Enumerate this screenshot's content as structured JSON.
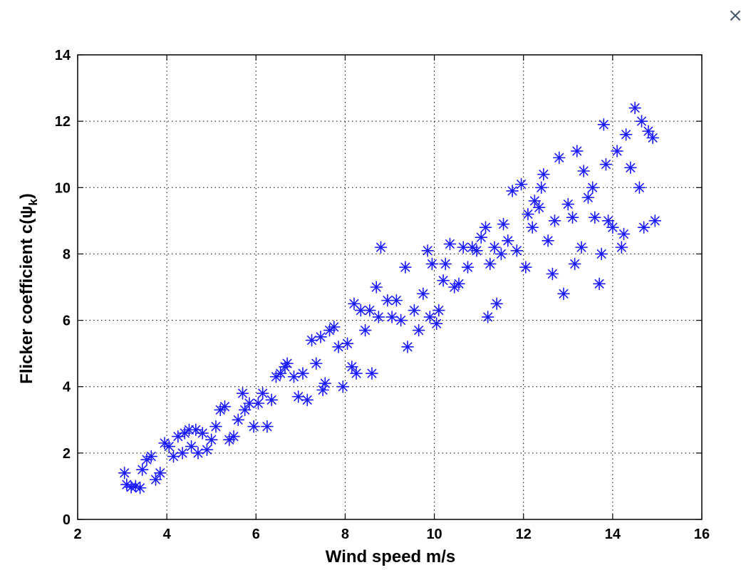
{
  "close_button": {
    "label": "×"
  },
  "chart_data": {
    "type": "scatter",
    "title": "",
    "xlabel": "Wind speed m/s",
    "ylabel": "Flicker coefficient c(ψ",
    "ylabel_subscript": "k",
    "ylabel_suffix": ")",
    "xlim": [
      2,
      16
    ],
    "ylim": [
      0,
      14
    ],
    "xticks": [
      2,
      4,
      6,
      8,
      10,
      12,
      14,
      16
    ],
    "yticks": [
      0,
      2,
      4,
      6,
      8,
      10,
      12,
      14
    ],
    "grid": true,
    "marker": "*",
    "marker_color": "#1a1aff",
    "series": [
      {
        "points": [
          [
            3.05,
            1.4
          ],
          [
            3.1,
            1.05
          ],
          [
            3.2,
            0.97
          ],
          [
            3.3,
            1.0
          ],
          [
            3.4,
            0.95
          ],
          [
            3.45,
            1.5
          ],
          [
            3.55,
            1.8
          ],
          [
            3.65,
            1.9
          ],
          [
            3.75,
            1.2
          ],
          [
            3.85,
            1.4
          ],
          [
            3.95,
            2.3
          ],
          [
            4.05,
            2.2
          ],
          [
            4.15,
            1.9
          ],
          [
            4.25,
            2.5
          ],
          [
            4.35,
            2.0
          ],
          [
            4.4,
            2.6
          ],
          [
            4.5,
            2.7
          ],
          [
            4.55,
            2.2
          ],
          [
            4.65,
            2.7
          ],
          [
            4.7,
            2.0
          ],
          [
            4.8,
            2.6
          ],
          [
            4.9,
            2.1
          ],
          [
            5.0,
            2.4
          ],
          [
            5.1,
            2.8
          ],
          [
            5.2,
            3.3
          ],
          [
            5.3,
            3.4
          ],
          [
            5.4,
            2.4
          ],
          [
            5.5,
            2.5
          ],
          [
            5.6,
            3.0
          ],
          [
            5.7,
            3.8
          ],
          [
            5.75,
            3.3
          ],
          [
            5.85,
            3.5
          ],
          [
            5.95,
            2.8
          ],
          [
            6.05,
            3.5
          ],
          [
            6.15,
            3.8
          ],
          [
            6.25,
            2.8
          ],
          [
            6.35,
            3.6
          ],
          [
            6.45,
            4.3
          ],
          [
            6.55,
            4.4
          ],
          [
            6.65,
            4.6
          ],
          [
            6.7,
            4.7
          ],
          [
            6.85,
            4.3
          ],
          [
            6.95,
            3.7
          ],
          [
            7.05,
            4.4
          ],
          [
            7.15,
            3.6
          ],
          [
            7.25,
            5.4
          ],
          [
            7.35,
            4.7
          ],
          [
            7.45,
            5.5
          ],
          [
            7.5,
            3.9
          ],
          [
            7.55,
            4.1
          ],
          [
            7.65,
            5.7
          ],
          [
            7.75,
            5.8
          ],
          [
            7.85,
            5.2
          ],
          [
            7.95,
            4.0
          ],
          [
            8.05,
            5.3
          ],
          [
            8.15,
            4.6
          ],
          [
            8.2,
            6.5
          ],
          [
            8.25,
            4.4
          ],
          [
            8.35,
            6.3
          ],
          [
            8.45,
            5.7
          ],
          [
            8.55,
            6.3
          ],
          [
            8.6,
            4.4
          ],
          [
            8.7,
            7.0
          ],
          [
            8.75,
            6.1
          ],
          [
            8.8,
            8.2
          ],
          [
            8.95,
            6.6
          ],
          [
            9.05,
            6.1
          ],
          [
            9.15,
            6.6
          ],
          [
            9.25,
            6.0
          ],
          [
            9.35,
            7.6
          ],
          [
            9.4,
            5.2
          ],
          [
            9.55,
            6.3
          ],
          [
            9.65,
            5.7
          ],
          [
            9.75,
            6.8
          ],
          [
            9.85,
            8.1
          ],
          [
            9.9,
            6.1
          ],
          [
            9.95,
            7.7
          ],
          [
            10.05,
            5.9
          ],
          [
            10.1,
            6.3
          ],
          [
            10.2,
            7.2
          ],
          [
            10.25,
            7.7
          ],
          [
            10.35,
            8.3
          ],
          [
            10.45,
            7.0
          ],
          [
            10.55,
            7.1
          ],
          [
            10.65,
            8.2
          ],
          [
            10.75,
            7.6
          ],
          [
            10.85,
            8.2
          ],
          [
            10.95,
            8.1
          ],
          [
            11.05,
            8.5
          ],
          [
            11.15,
            8.8
          ],
          [
            11.2,
            6.1
          ],
          [
            11.25,
            7.7
          ],
          [
            11.35,
            8.2
          ],
          [
            11.4,
            6.5
          ],
          [
            11.5,
            8.0
          ],
          [
            11.55,
            8.9
          ],
          [
            11.65,
            8.4
          ],
          [
            11.75,
            9.9
          ],
          [
            11.85,
            8.1
          ],
          [
            11.95,
            10.1
          ],
          [
            12.05,
            7.6
          ],
          [
            12.1,
            9.2
          ],
          [
            12.2,
            8.8
          ],
          [
            12.25,
            9.6
          ],
          [
            12.35,
            9.4
          ],
          [
            12.4,
            10.0
          ],
          [
            12.45,
            10.4
          ],
          [
            12.55,
            8.4
          ],
          [
            12.65,
            7.4
          ],
          [
            12.7,
            9.0
          ],
          [
            12.8,
            10.9
          ],
          [
            12.9,
            6.8
          ],
          [
            13.0,
            9.5
          ],
          [
            13.1,
            9.1
          ],
          [
            13.15,
            7.7
          ],
          [
            13.2,
            11.1
          ],
          [
            13.3,
            8.2
          ],
          [
            13.35,
            10.5
          ],
          [
            13.45,
            9.7
          ],
          [
            13.55,
            10.0
          ],
          [
            13.6,
            9.1
          ],
          [
            13.7,
            7.1
          ],
          [
            13.75,
            8.0
          ],
          [
            13.8,
            11.9
          ],
          [
            13.85,
            10.7
          ],
          [
            13.9,
            9.0
          ],
          [
            14.0,
            8.8
          ],
          [
            14.1,
            11.1
          ],
          [
            14.2,
            8.2
          ],
          [
            14.25,
            8.6
          ],
          [
            14.3,
            11.6
          ],
          [
            14.4,
            10.6
          ],
          [
            14.5,
            12.4
          ],
          [
            14.6,
            10.0
          ],
          [
            14.65,
            12.0
          ],
          [
            14.7,
            8.8
          ],
          [
            14.8,
            11.7
          ],
          [
            14.9,
            11.5
          ],
          [
            14.95,
            9.0
          ]
        ]
      }
    ]
  }
}
